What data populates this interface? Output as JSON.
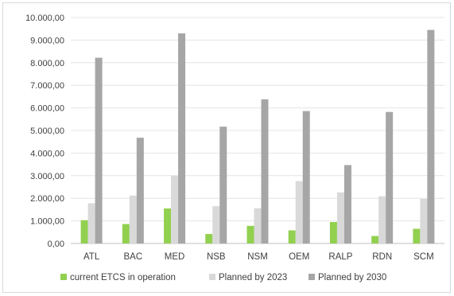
{
  "chart_data": {
    "type": "bar",
    "title": "",
    "xlabel": "",
    "ylabel": "",
    "categories": [
      "ATL",
      "BAC",
      "MED",
      "NSB",
      "NSM",
      "OEM",
      "RALP",
      "RDN",
      "SCM"
    ],
    "series": [
      {
        "name": "current ETCS in operation",
        "color": "#92d050",
        "values": [
          1030,
          860,
          1550,
          420,
          780,
          580,
          950,
          330,
          650
        ]
      },
      {
        "name": "Planned by 2023",
        "color": "#d9d9d9",
        "values": [
          1780,
          2120,
          3000,
          1650,
          1560,
          2760,
          2260,
          2090,
          1970
        ]
      },
      {
        "name": "Planned by 2030",
        "color": "#a6a6a6",
        "values": [
          8220,
          4680,
          9300,
          5170,
          6380,
          5860,
          3470,
          5820,
          9450
        ]
      }
    ],
    "ylim": [
      0,
      10000
    ],
    "yticks": [
      "0,00",
      "1.000,00",
      "2.000,00",
      "3.000,00",
      "4.000,00",
      "5.000,00",
      "6.000,00",
      "7.000,00",
      "8.000,00",
      "9.000,00",
      "10.000,00"
    ],
    "grid": true,
    "legend_position": "bottom"
  }
}
